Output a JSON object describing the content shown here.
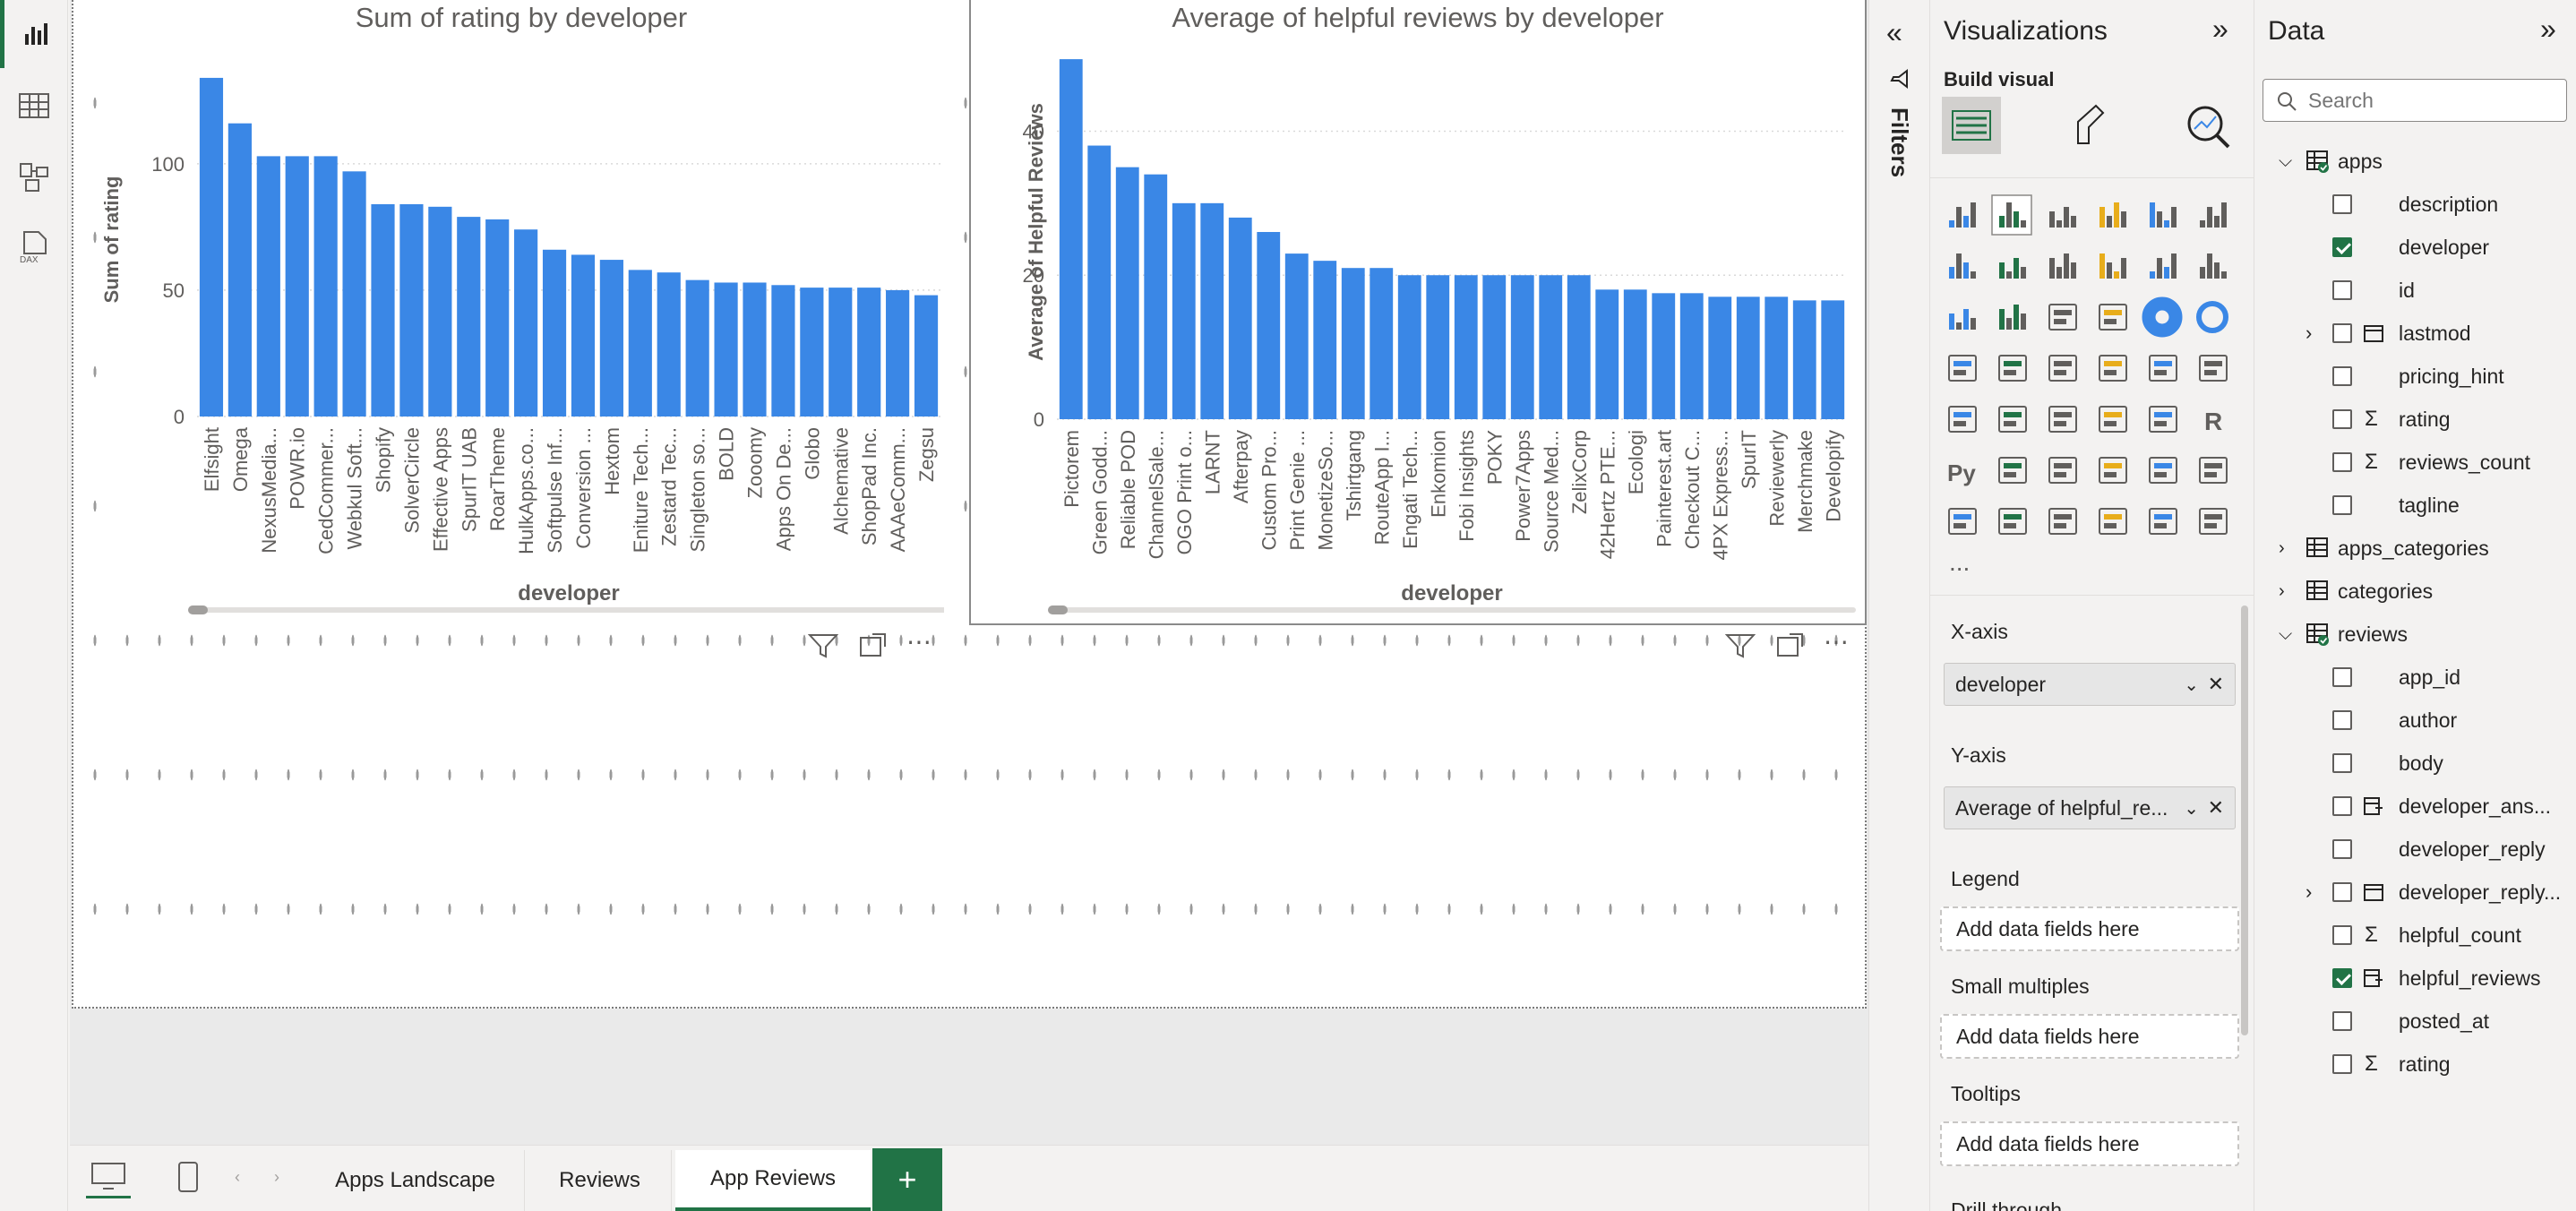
{
  "rail": {
    "items": [
      {
        "name": "report-view-icon",
        "active": true
      },
      {
        "name": "table-view-icon",
        "active": false
      },
      {
        "name": "model-view-icon",
        "active": false
      },
      {
        "name": "dax-query-view-icon",
        "active": false
      }
    ],
    "dax_label": "DAX"
  },
  "visual_actions": {
    "filter": "filter-icon",
    "focus": "focus-mode-icon",
    "more": "⋯"
  },
  "tabs": [
    {
      "label": "Apps Landscape",
      "active": false
    },
    {
      "label": "Reviews",
      "active": false
    },
    {
      "label": "App Reviews",
      "active": true
    }
  ],
  "add_page": "+",
  "filters_label": "Filters",
  "viz": {
    "title": "Visualizations",
    "build_visual": "Build visual",
    "more": "...",
    "wells": [
      {
        "label": "X-axis",
        "field": "developer",
        "empty": "Add data fields here"
      },
      {
        "label": "Y-axis",
        "field": "Average of helpful_re...",
        "empty": "Add data fields here"
      },
      {
        "label": "Legend",
        "field": "",
        "empty": "Add data fields here"
      },
      {
        "label": "Small multiples",
        "field": "",
        "empty": "Add data fields here"
      },
      {
        "label": "Tooltips",
        "field": "",
        "empty": "Add data fields here"
      }
    ],
    "cut_label": "Drill through"
  },
  "data_pane": {
    "title": "Data",
    "search_placeholder": "Search",
    "tree": [
      {
        "level": 0,
        "label": "apps",
        "kind": "table",
        "expanded": true,
        "checkmark": true
      },
      {
        "level": 1,
        "label": "description",
        "kind": "field",
        "checked": false
      },
      {
        "level": 1,
        "label": "developer",
        "kind": "field",
        "checked": true
      },
      {
        "level": 1,
        "label": "id",
        "kind": "field",
        "checked": false
      },
      {
        "level": 1,
        "label": "lastmod",
        "kind": "date",
        "checked": false,
        "expandable": true
      },
      {
        "level": 1,
        "label": "pricing_hint",
        "kind": "field",
        "checked": false
      },
      {
        "level": 1,
        "label": "rating",
        "kind": "sigma",
        "checked": false
      },
      {
        "level": 1,
        "label": "reviews_count",
        "kind": "sigma",
        "checked": false
      },
      {
        "level": 1,
        "label": "tagline",
        "kind": "field",
        "checked": false
      },
      {
        "level": 0,
        "label": "apps_categories",
        "kind": "table",
        "expanded": false
      },
      {
        "level": 0,
        "label": "categories",
        "kind": "table",
        "expanded": false
      },
      {
        "level": 0,
        "label": "reviews",
        "kind": "table",
        "expanded": true,
        "checkmark": true
      },
      {
        "level": 1,
        "label": "app_id",
        "kind": "field",
        "checked": false
      },
      {
        "level": 1,
        "label": "author",
        "kind": "field",
        "checked": false
      },
      {
        "level": 1,
        "label": "body",
        "kind": "field",
        "checked": false
      },
      {
        "level": 1,
        "label": "developer_ans...",
        "kind": "calc",
        "checked": false
      },
      {
        "level": 1,
        "label": "developer_reply",
        "kind": "field",
        "checked": false
      },
      {
        "level": 1,
        "label": "developer_reply...",
        "kind": "date",
        "checked": false,
        "expandable": true
      },
      {
        "level": 1,
        "label": "helpful_count",
        "kind": "sigma",
        "checked": false
      },
      {
        "level": 1,
        "label": "helpful_reviews",
        "kind": "calc",
        "checked": true
      },
      {
        "level": 1,
        "label": "posted_at",
        "kind": "field",
        "checked": false
      },
      {
        "level": 1,
        "label": "rating",
        "kind": "sigma",
        "checked": false
      }
    ]
  },
  "colors": {
    "bar": "#3a87e6",
    "accent": "#217346"
  },
  "chart_data": [
    {
      "type": "bar",
      "title": "Sum of rating by developer",
      "xlabel": "developer",
      "ylabel": "Sum of rating",
      "ylim": [
        0,
        140
      ],
      "yticks": [
        0,
        50,
        100
      ],
      "categories": [
        "Elfsight",
        "Omega",
        "NexusMedia...",
        "POWR.io",
        "CedCommer...",
        "Webkul Soft...",
        "Shopify",
        "SolverCircle",
        "Effective Apps",
        "SpurIT UAB",
        "RoarTheme",
        "HulkApps.co...",
        "Softpulse Inf...",
        "Conversion ...",
        "Hextom",
        "Eniture Tech...",
        "Zestard Tec...",
        "Singleton so...",
        "BOLD",
        "Zooomy",
        "Apps On De...",
        "Globo",
        "Alchemative",
        "ShopPad Inc.",
        "AAAeComm...",
        "Zegsu"
      ],
      "values": [
        134,
        116,
        103,
        103,
        103,
        97,
        84,
        84,
        83,
        79,
        78,
        74,
        66,
        64,
        62,
        58,
        57,
        54,
        53,
        53,
        52,
        51,
        51,
        51,
        50,
        48
      ]
    },
    {
      "type": "bar",
      "title": "Average of helpful reviews by developer",
      "xlabel": "developer",
      "ylabel": "Average of Helpful Reviews",
      "ylim": [
        0,
        52
      ],
      "yticks": [
        0,
        20,
        40
      ],
      "categories": [
        "Pictorem",
        "Green Godd...",
        "Reliable POD",
        "ChannelSale...",
        "OGO Print o...",
        "LARNT",
        "Afterpay",
        "Custom Pro...",
        "Print Genie ...",
        "MonetizeSo...",
        "Tshirtgang",
        "RouteApp I...",
        "Engati Tech...",
        "Enkomion",
        "Fobi Insights",
        "POKY",
        "Power7Apps",
        "Source Med...",
        "ZelixCorp",
        "42Hertz PTE...",
        "Ecologi",
        "Painterest.art",
        "Checkout C...",
        "4PX Express...",
        "SpurIT",
        "Reviewerly",
        "Merchmake",
        "Developify"
      ],
      "values": [
        50,
        38,
        35,
        34,
        30,
        30,
        28,
        26,
        23,
        22,
        21,
        21,
        20,
        20,
        20,
        20,
        20,
        20,
        20,
        18,
        18,
        17.5,
        17.5,
        17,
        17,
        17,
        16.5,
        16.5
      ]
    }
  ]
}
